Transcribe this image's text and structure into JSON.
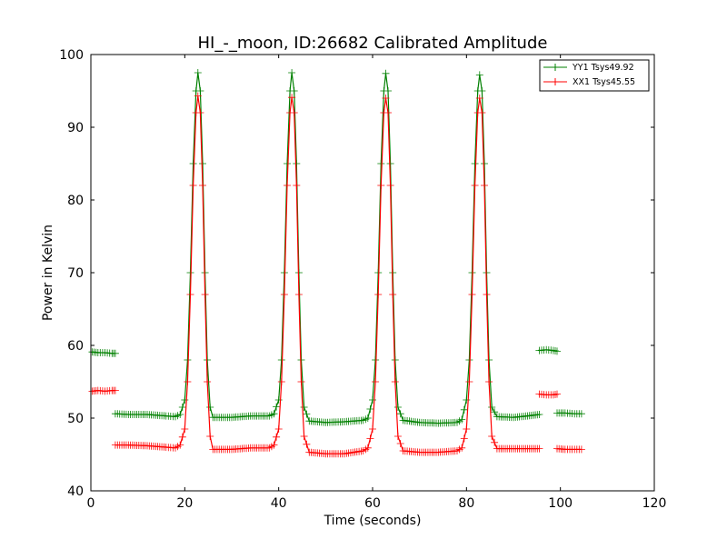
{
  "chart_data": {
    "type": "line",
    "title": "HI_-_moon, ID:26682 Calibrated Amplitude",
    "xlabel": "Time (seconds)",
    "ylabel": "Power in Kelvin",
    "xlim": [
      0,
      120
    ],
    "ylim": [
      40,
      100
    ],
    "xticks": [
      0,
      20,
      40,
      60,
      80,
      100,
      120
    ],
    "yticks": [
      40,
      50,
      60,
      70,
      80,
      90,
      100
    ],
    "grid": false,
    "legend_position": "top-right",
    "series": [
      {
        "name": "YY1 Tsys49.92",
        "color": "#008000",
        "marker": "+",
        "segments": [
          [
            [
              0.3,
              59.1
            ],
            [
              1.5,
              59.0
            ],
            [
              3,
              59.0
            ],
            [
              4.5,
              58.9
            ],
            [
              5.2,
              58.9
            ]
          ],
          [
            [
              5.2,
              50.6
            ],
            [
              8,
              50.5
            ],
            [
              12,
              50.5
            ],
            [
              16,
              50.3
            ],
            [
              18,
              50.2
            ],
            [
              19,
              50.5
            ],
            [
              20,
              52.5
            ],
            [
              20.6,
              58
            ],
            [
              21.2,
              70
            ],
            [
              21.8,
              85
            ],
            [
              22.4,
              95
            ],
            [
              22.8,
              97.5
            ],
            [
              23.3,
              95
            ],
            [
              23.8,
              85
            ],
            [
              24.3,
              70
            ],
            [
              24.8,
              58
            ],
            [
              25.4,
              51.5
            ],
            [
              26,
              50.1
            ],
            [
              30,
              50.1
            ],
            [
              34,
              50.3
            ],
            [
              38,
              50.3
            ],
            [
              39,
              50.6
            ],
            [
              40,
              52.5
            ],
            [
              40.6,
              58
            ],
            [
              41.2,
              70
            ],
            [
              41.8,
              85
            ],
            [
              42.4,
              95
            ],
            [
              42.8,
              97.5
            ],
            [
              43.3,
              95
            ],
            [
              43.8,
              85
            ],
            [
              44.3,
              70
            ],
            [
              44.8,
              58
            ],
            [
              45.4,
              51.5
            ],
            [
              46.5,
              49.6
            ],
            [
              50,
              49.4
            ],
            [
              54,
              49.5
            ],
            [
              58,
              49.7
            ],
            [
              59,
              50
            ],
            [
              60,
              52.5
            ],
            [
              60.6,
              58
            ],
            [
              61.2,
              70
            ],
            [
              61.8,
              85
            ],
            [
              62.4,
              95
            ],
            [
              62.8,
              97.4
            ],
            [
              63.3,
              95
            ],
            [
              63.8,
              85
            ],
            [
              64.3,
              70
            ],
            [
              64.8,
              58
            ],
            [
              65.4,
              51.5
            ],
            [
              66.5,
              49.7
            ],
            [
              70,
              49.4
            ],
            [
              74,
              49.3
            ],
            [
              78,
              49.4
            ],
            [
              79,
              49.8
            ],
            [
              80,
              52.5
            ],
            [
              80.6,
              58
            ],
            [
              81.2,
              70
            ],
            [
              81.8,
              85
            ],
            [
              82.4,
              95
            ],
            [
              82.8,
              97.2
            ],
            [
              83.3,
              95
            ],
            [
              83.8,
              85
            ],
            [
              84.3,
              70
            ],
            [
              84.8,
              58
            ],
            [
              85.4,
              51.5
            ],
            [
              86.5,
              50.2
            ],
            [
              90,
              50.1
            ],
            [
              93,
              50.3
            ],
            [
              95.5,
              50.5
            ]
          ],
          [
            [
              95.5,
              59.3
            ],
            [
              97,
              59.4
            ],
            [
              98.5,
              59.3
            ],
            [
              99.3,
              59.2
            ]
          ],
          [
            [
              99.3,
              50.7
            ],
            [
              101,
              50.7
            ],
            [
              103,
              50.6
            ],
            [
              104.5,
              50.6
            ]
          ]
        ]
      },
      {
        "name": "XX1 Tsys45.55",
        "color": "#ff0000",
        "marker": "+",
        "segments": [
          [
            [
              0.3,
              53.7
            ],
            [
              1.5,
              53.8
            ],
            [
              3,
              53.7
            ],
            [
              4.5,
              53.8
            ],
            [
              5.2,
              53.8
            ]
          ],
          [
            [
              5.2,
              46.3
            ],
            [
              8,
              46.3
            ],
            [
              12,
              46.2
            ],
            [
              16,
              46.0
            ],
            [
              18,
              45.9
            ],
            [
              19,
              46.3
            ],
            [
              20,
              48.5
            ],
            [
              20.6,
              55
            ],
            [
              21.2,
              67
            ],
            [
              21.8,
              82
            ],
            [
              22.4,
              92
            ],
            [
              22.8,
              94.3
            ],
            [
              23.3,
              92
            ],
            [
              23.8,
              82
            ],
            [
              24.3,
              67
            ],
            [
              24.8,
              55
            ],
            [
              25.4,
              47.5
            ],
            [
              26,
              45.7
            ],
            [
              30,
              45.7
            ],
            [
              34,
              45.9
            ],
            [
              38,
              45.9
            ],
            [
              39,
              46.3
            ],
            [
              40,
              48.5
            ],
            [
              40.6,
              55
            ],
            [
              41.2,
              67
            ],
            [
              41.8,
              82
            ],
            [
              42.4,
              92
            ],
            [
              42.8,
              94.1
            ],
            [
              43.3,
              92
            ],
            [
              43.8,
              82
            ],
            [
              44.3,
              67
            ],
            [
              44.8,
              55
            ],
            [
              45.4,
              47.5
            ],
            [
              46.5,
              45.3
            ],
            [
              50,
              45.1
            ],
            [
              54,
              45.1
            ],
            [
              58,
              45.5
            ],
            [
              59,
              45.9
            ],
            [
              60,
              48.5
            ],
            [
              60.6,
              55
            ],
            [
              61.2,
              67
            ],
            [
              61.8,
              82
            ],
            [
              62.4,
              92
            ],
            [
              62.8,
              94
            ],
            [
              63.3,
              92
            ],
            [
              63.8,
              82
            ],
            [
              64.3,
              67
            ],
            [
              64.8,
              55
            ],
            [
              65.4,
              47.5
            ],
            [
              66.5,
              45.5
            ],
            [
              70,
              45.3
            ],
            [
              74,
              45.3
            ],
            [
              78,
              45.5
            ],
            [
              79,
              45.9
            ],
            [
              80,
              48.5
            ],
            [
              80.6,
              55
            ],
            [
              81.2,
              67
            ],
            [
              81.8,
              82
            ],
            [
              82.4,
              92
            ],
            [
              82.8,
              94
            ],
            [
              83.3,
              92
            ],
            [
              83.8,
              82
            ],
            [
              84.3,
              67
            ],
            [
              84.8,
              55
            ],
            [
              85.4,
              47.5
            ],
            [
              86.5,
              45.8
            ],
            [
              90,
              45.8
            ],
            [
              93,
              45.8
            ],
            [
              95.5,
              45.8
            ]
          ],
          [
            [
              95.5,
              53.3
            ],
            [
              97,
              53.2
            ],
            [
              98.5,
              53.2
            ],
            [
              99.3,
              53.3
            ]
          ],
          [
            [
              99.3,
              45.8
            ],
            [
              101,
              45.7
            ],
            [
              103,
              45.7
            ],
            [
              104.5,
              45.7
            ]
          ]
        ]
      }
    ]
  }
}
